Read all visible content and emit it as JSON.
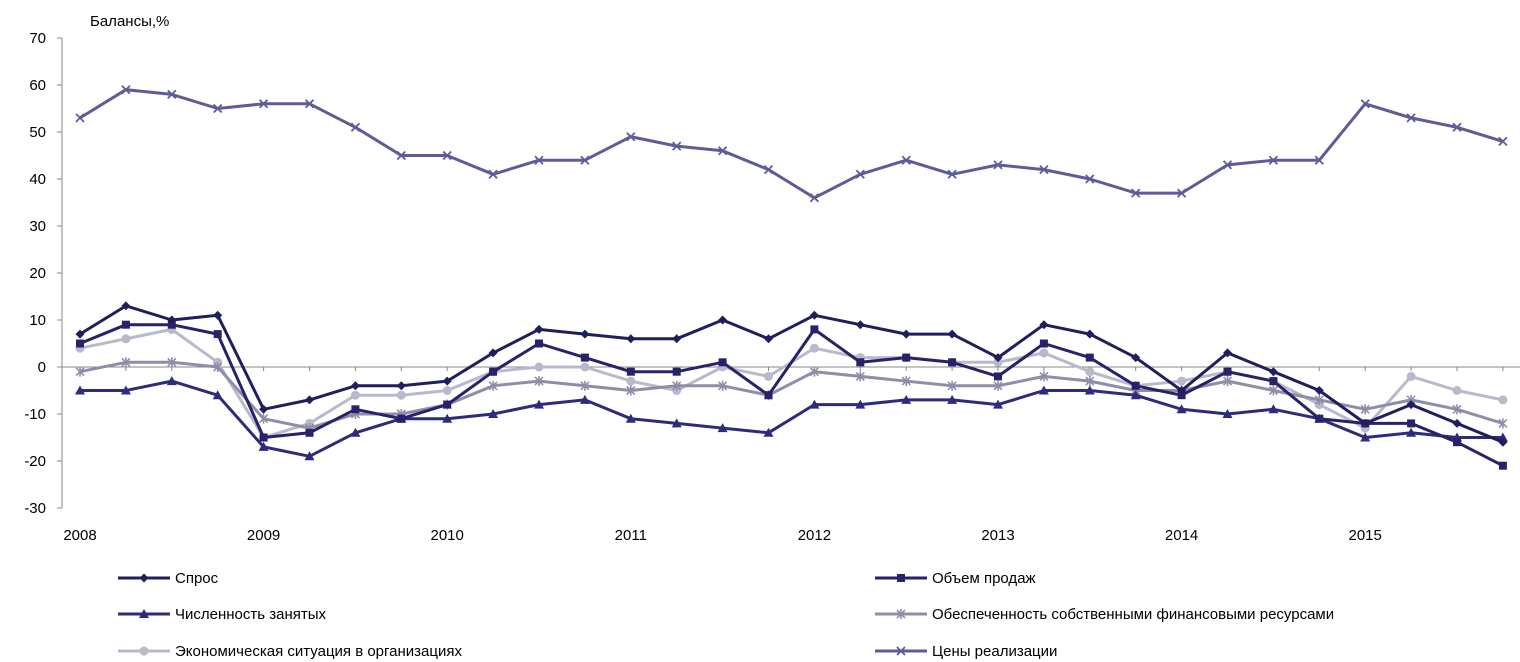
{
  "chart_data": {
    "type": "line",
    "ylabel": "Балансы,%",
    "ylim": [
      -30,
      70
    ],
    "yticks": [
      -30,
      -20,
      -10,
      0,
      10,
      20,
      30,
      40,
      50,
      60,
      70
    ],
    "xticks": [
      "2008",
      "2009",
      "2010",
      "2011",
      "2012",
      "2013",
      "2014",
      "2015"
    ],
    "points_per_year": 4,
    "grid": false,
    "legend_position": "bottom",
    "series": [
      {
        "name": "Спрос",
        "color": "#1f1f5e",
        "marker": "diamond",
        "values": [
          7,
          13,
          10,
          11,
          -9,
          -7,
          -4,
          -4,
          -3,
          3,
          8,
          7,
          6,
          6,
          10,
          6,
          11,
          9,
          7,
          7,
          2,
          9,
          7,
          2,
          -5,
          3,
          -1,
          -5,
          -12,
          -8,
          -12,
          -16
        ]
      },
      {
        "name": "Объем продаж",
        "color": "#26236b",
        "marker": "square",
        "values": [
          5,
          9,
          9,
          7,
          -15,
          -14,
          -9,
          -11,
          -8,
          -1,
          5,
          2,
          -1,
          -1,
          1,
          -6,
          8,
          1,
          2,
          1,
          -2,
          5,
          2,
          -4,
          -6,
          -1,
          -3,
          -11,
          -12,
          -12,
          -16,
          -21
        ]
      },
      {
        "name": "Численность занятых",
        "color": "#2e2c7a",
        "marker": "triangle",
        "values": [
          -5,
          -5,
          -3,
          -6,
          -17,
          -19,
          -14,
          -11,
          -11,
          -10,
          -8,
          -7,
          -11,
          -12,
          -13,
          -14,
          -8,
          -8,
          -7,
          -7,
          -8,
          -5,
          -5,
          -6,
          -9,
          -10,
          -9,
          -11,
          -15,
          -14,
          -15,
          -15
        ]
      },
      {
        "name": "Обеспеченность собственными финансовыми ресурсами",
        "color": "#8e8ea8",
        "marker": "star",
        "values": [
          -1,
          1,
          1,
          0,
          -11,
          -13,
          -10,
          -10,
          -8,
          -4,
          -3,
          -4,
          -5,
          -4,
          -4,
          -6,
          -1,
          -2,
          -3,
          -4,
          -4,
          -2,
          -3,
          -5,
          -5,
          -3,
          -5,
          -7,
          -9,
          -7,
          -9,
          -12
        ]
      },
      {
        "name": "Экономическая ситуация в организациях",
        "color": "#b9b9cc",
        "marker": "circle",
        "values": [
          4,
          6,
          8,
          1,
          -15,
          -12,
          -6,
          -6,
          -5,
          -1,
          0,
          0,
          -3,
          -5,
          0,
          -2,
          4,
          2,
          2,
          1,
          1,
          3,
          -1,
          -4,
          -3,
          -1,
          -3,
          -8,
          -13,
          -2,
          -5,
          -7
        ]
      },
      {
        "name": "Цены реализации",
        "color": "#5d5c98",
        "marker": "x",
        "values": [
          53,
          59,
          58,
          55,
          56,
          56,
          51,
          45,
          45,
          41,
          44,
          44,
          49,
          47,
          46,
          42,
          36,
          41,
          44,
          41,
          43,
          42,
          40,
          37,
          37,
          43,
          44,
          44,
          56,
          53,
          51,
          48
        ]
      }
    ]
  }
}
